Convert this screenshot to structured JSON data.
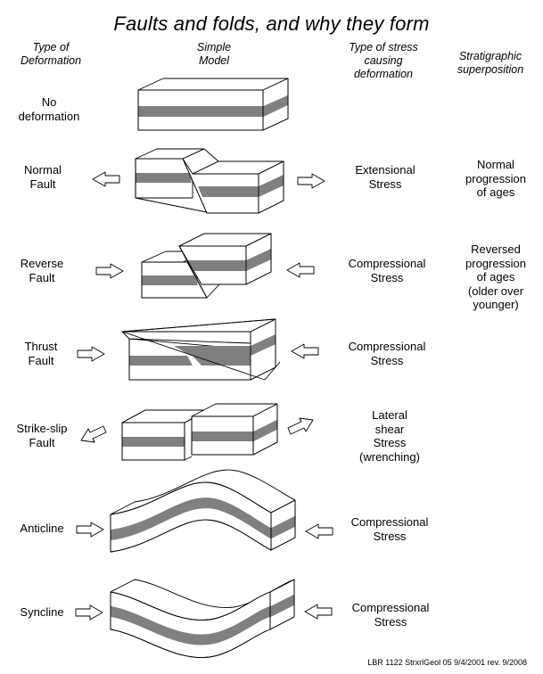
{
  "title": "Faults and folds, and why they form",
  "headers": {
    "type": "Type of\nDeformation",
    "model": "Simple\nModel",
    "stress": "Type of stress\ncausing\ndeformation",
    "strat": "Stratigraphic\nsuperposition"
  },
  "rows": [
    {
      "label": "No\ndeformation",
      "stress": "",
      "strat": ""
    },
    {
      "label": "Normal\nFault",
      "stress": "Extensional\nStress",
      "strat": "Normal\nprogression\nof ages"
    },
    {
      "label": "Reverse\nFault",
      "stress": "Compressional\nStress",
      "strat": "Reversed\nprogression\nof ages\n(older over\nyounger)"
    },
    {
      "label": "Thrust\nFault",
      "stress": "Compressional\nStress",
      "strat": ""
    },
    {
      "label": "Strike-slip\nFault",
      "stress": "Lateral\nshear\nStress\n(wrenching)",
      "strat": ""
    },
    {
      "label": "Anticline",
      "stress": "Compressional\nStress",
      "strat": ""
    },
    {
      "label": "Syncline",
      "stress": "Compressional\nStress",
      "strat": ""
    }
  ],
  "footer": "LBR  1122 StrxrlGeol 05  9/4/2001 rev. 9/2008",
  "colors": {
    "band": "#808080",
    "line": "#000000",
    "background": "#ffffff"
  }
}
